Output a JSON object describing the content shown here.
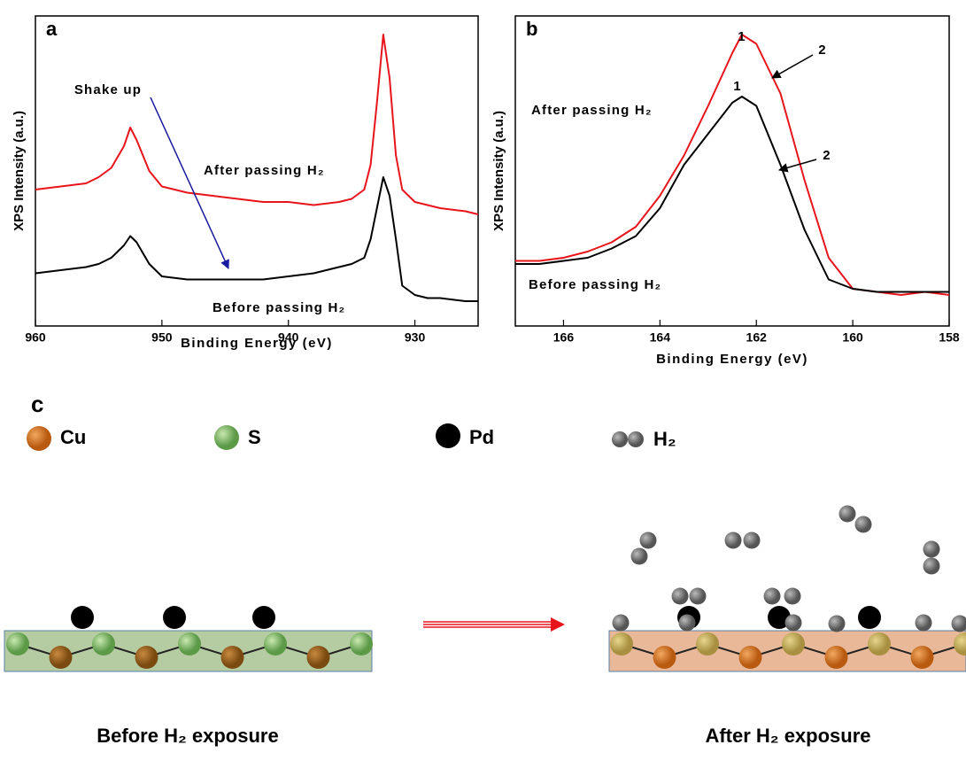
{
  "chart_data": [
    {
      "type": "line",
      "label": "a",
      "xlabel": "Binding Energy (eV)",
      "ylabel": "XPS Intensity (a.u.)",
      "x": [
        960,
        958,
        956,
        955,
        954,
        953,
        952.5,
        952,
        951,
        950,
        948,
        946,
        944,
        942,
        940,
        938,
        936,
        935,
        934,
        933.5,
        933,
        932.5,
        932,
        931.5,
        931,
        930,
        929,
        928,
        926,
        925
      ],
      "series": [
        {
          "name": "After passing H₂",
          "color": "#e8141c",
          "values": [
            44,
            45,
            46,
            48,
            51,
            58,
            64,
            60,
            50,
            45,
            43,
            42,
            41,
            40,
            40,
            39,
            40,
            41,
            44,
            52,
            72,
            94,
            80,
            55,
            44,
            40,
            39,
            38,
            37,
            36
          ]
        },
        {
          "name": "Before passing H₂",
          "color": "#000000",
          "values": [
            17,
            18,
            19,
            20,
            22,
            26,
            29,
            27,
            20,
            16,
            15,
            15,
            15,
            15,
            16,
            17,
            19,
            20,
            22,
            28,
            38,
            48,
            42,
            28,
            13,
            10,
            9,
            9,
            8,
            8
          ]
        }
      ],
      "xlim": [
        960,
        925
      ],
      "xticks": [
        960,
        950,
        940,
        930
      ],
      "ylim": [
        0,
        100
      ],
      "annotations": [
        "Shake up"
      ]
    },
    {
      "type": "line",
      "label": "b",
      "xlabel": "Binding Energy (eV)",
      "ylabel": "XPS Intensity (a.u.)",
      "x": [
        167,
        166.5,
        166,
        165.5,
        165,
        164.5,
        164,
        163.5,
        163,
        162.5,
        162.3,
        162,
        161.5,
        161,
        160.5,
        160,
        159.5,
        159,
        158.5,
        158
      ],
      "series": [
        {
          "name": "After passing H₂",
          "color": "#e8141c",
          "values": [
            21,
            21,
            22,
            24,
            27,
            32,
            42,
            55,
            71,
            88,
            94,
            91,
            75,
            47,
            22,
            12,
            11,
            10,
            11,
            10
          ]
        },
        {
          "name": "Before passing H₂",
          "color": "#000000",
          "values": [
            20,
            20,
            21,
            22,
            25,
            29,
            38,
            52,
            62,
            72,
            74,
            71,
            52,
            31,
            15,
            12,
            11,
            11,
            11,
            11
          ]
        }
      ],
      "xlim": [
        167,
        158
      ],
      "xticks": [
        166,
        164,
        162,
        160,
        158
      ],
      "ylim": [
        0,
        100
      ],
      "annotations": [
        "1",
        "2",
        "1",
        "2"
      ]
    }
  ],
  "diagram": {
    "label": "c",
    "legend": [
      "Cu",
      "S",
      "Pd",
      "H₂"
    ],
    "captions": [
      "Before H₂ exposure",
      "After H₂ exposure"
    ]
  }
}
